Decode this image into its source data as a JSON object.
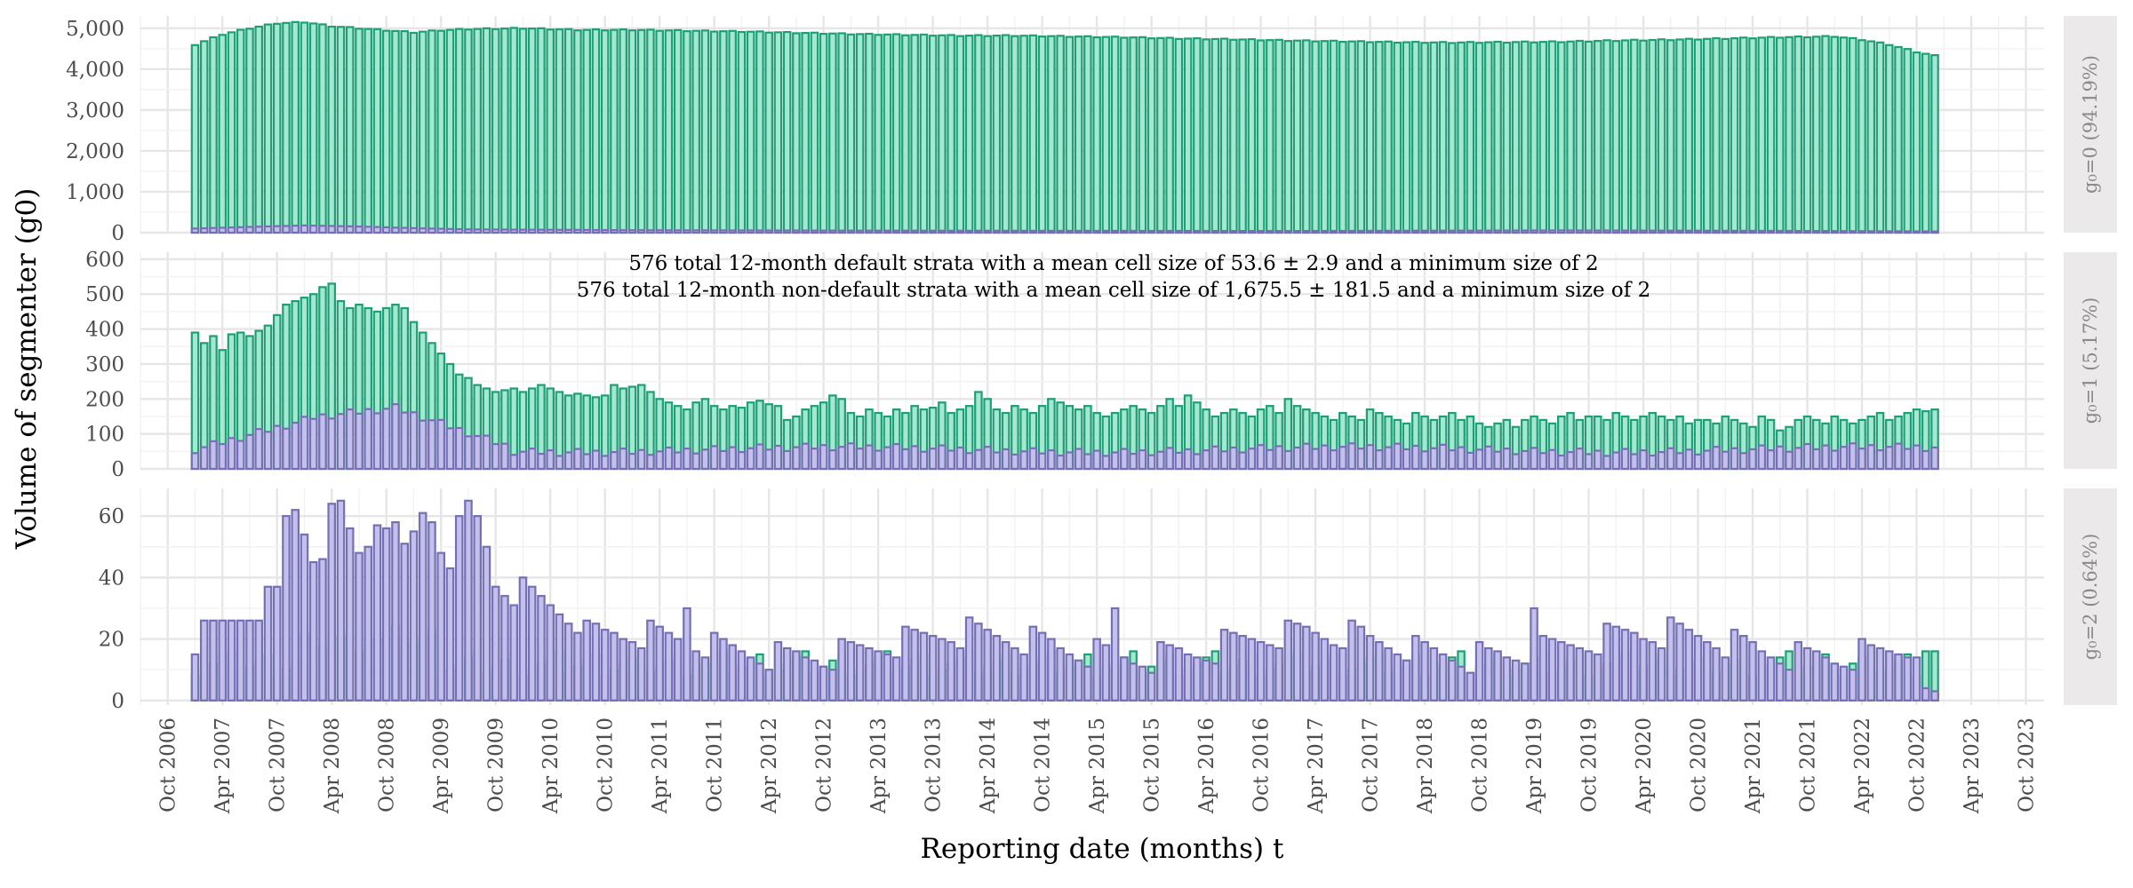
{
  "chart_data": {
    "type": "bar",
    "x_axis_label": "Reporting date (months) t",
    "y_axis_label": "Volume of segmenter (g0)",
    "x_tick_labels": [
      "Oct 2006",
      "Apr 2007",
      "Oct 2007",
      "Apr 2008",
      "Oct 2008",
      "Apr 2009",
      "Oct 2009",
      "Apr 2010",
      "Oct 2010",
      "Apr 2011",
      "Oct 2011",
      "Apr 2012",
      "Oct 2012",
      "Apr 2013",
      "Oct 2013",
      "Apr 2014",
      "Oct 2014",
      "Apr 2015",
      "Oct 2015",
      "Apr 2016",
      "Oct 2016",
      "Apr 2017",
      "Oct 2017",
      "Apr 2018",
      "Oct 2018",
      "Apr 2019",
      "Oct 2019",
      "Apr 2020",
      "Oct 2020",
      "Apr 2021",
      "Oct 2021",
      "Apr 2022",
      "Oct 2022",
      "Apr 2023",
      "Oct 2023"
    ],
    "x_range": [
      "2006-07",
      "2023-12"
    ],
    "first_month": "2007-01",
    "last_month": "2022-12",
    "series_colors": {
      "non_default": "#1f9e77",
      "default": "#7570b3"
    },
    "series_fill_colors": {
      "non_default": "#a3e8cf",
      "default": "#c3c0ec"
    },
    "annotations": [
      "576 total 12-month default strata with a mean cell size of 53.6 ± 2.9 and a minimum size of 2",
      "576 total 12-month non-default strata with a mean cell size of 1,675.5 ± 181.5 and a minimum size of 2"
    ],
    "grid": true,
    "panels": [
      {
        "strip_label": "g₀=0 (94.19%)",
        "ylim": [
          0,
          5300
        ],
        "y_ticks": [
          0,
          1000,
          2000,
          3000,
          4000,
          5000
        ],
        "y_tick_labels": [
          "0",
          "1,000",
          "2,000",
          "3,000",
          "4,000",
          "5,000"
        ],
        "non_default_anchors": [
          [
            0,
            4600
          ],
          [
            3,
            4850
          ],
          [
            6,
            5000
          ],
          [
            9,
            5120
          ],
          [
            12,
            5150
          ],
          [
            15,
            5050
          ],
          [
            18,
            5000
          ],
          [
            21,
            4950
          ],
          [
            24,
            4900
          ],
          [
            27,
            4950
          ],
          [
            30,
            4980
          ],
          [
            36,
            5000
          ],
          [
            42,
            4960
          ],
          [
            48,
            4960
          ],
          [
            54,
            4940
          ],
          [
            60,
            4920
          ],
          [
            66,
            4890
          ],
          [
            72,
            4860
          ],
          [
            78,
            4840
          ],
          [
            84,
            4820
          ],
          [
            90,
            4820
          ],
          [
            96,
            4800
          ],
          [
            102,
            4780
          ],
          [
            108,
            4750
          ],
          [
            114,
            4730
          ],
          [
            120,
            4700
          ],
          [
            126,
            4680
          ],
          [
            132,
            4660
          ],
          [
            138,
            4650
          ],
          [
            144,
            4660
          ],
          [
            150,
            4670
          ],
          [
            156,
            4700
          ],
          [
            162,
            4720
          ],
          [
            168,
            4750
          ],
          [
            174,
            4780
          ],
          [
            180,
            4800
          ],
          [
            183,
            4720
          ],
          [
            186,
            4600
          ],
          [
            189,
            4420
          ],
          [
            191,
            4330
          ]
        ],
        "default_anchors": [
          [
            0,
            100
          ],
          [
            6,
            140
          ],
          [
            12,
            175
          ],
          [
            18,
            150
          ],
          [
            24,
            110
          ],
          [
            30,
            80
          ],
          [
            48,
            60
          ],
          [
            72,
            50
          ],
          [
            96,
            45
          ],
          [
            120,
            40
          ],
          [
            150,
            55
          ],
          [
            180,
            40
          ],
          [
            191,
            30
          ]
        ]
      },
      {
        "strip_label": "g₀=1 (5.17%)",
        "ylim": [
          0,
          620
        ],
        "y_ticks": [
          0,
          100,
          200,
          300,
          400,
          500,
          600
        ],
        "y_tick_labels": [
          "0",
          "100",
          "200",
          "300",
          "400",
          "500",
          "600"
        ],
        "non_default_values": [
          390,
          360,
          380,
          340,
          385,
          390,
          380,
          395,
          410,
          440,
          470,
          480,
          490,
          500,
          520,
          530,
          480,
          460,
          470,
          460,
          450,
          460,
          470,
          460,
          420,
          390,
          360,
          330,
          300,
          270,
          260,
          240,
          230,
          220,
          225,
          230,
          220,
          230,
          240,
          230,
          220,
          210,
          215,
          210,
          205,
          210,
          240,
          230,
          235,
          240,
          220,
          200,
          190,
          180,
          170,
          190,
          200,
          180,
          170,
          180,
          175,
          190,
          195,
          185,
          180,
          140,
          150,
          170,
          180,
          190,
          210,
          200,
          160,
          150,
          170,
          160,
          150,
          170,
          160,
          180,
          170,
          175,
          190,
          160,
          170,
          180,
          220,
          200,
          170,
          160,
          180,
          170,
          160,
          180,
          200,
          190,
          180,
          170,
          180,
          160,
          150,
          160,
          170,
          180,
          170,
          160,
          180,
          200,
          180,
          210,
          190,
          170,
          150,
          160,
          170,
          160,
          150,
          170,
          180,
          160,
          200,
          180,
          170,
          160,
          150,
          140,
          160,
          150,
          140,
          170,
          160,
          150,
          140,
          130,
          160,
          150,
          140,
          150,
          160,
          140,
          150,
          130,
          120,
          130,
          140,
          120,
          140,
          150,
          140,
          130,
          150,
          160,
          140,
          150,
          150,
          140,
          160,
          150,
          140,
          150,
          160,
          150,
          140,
          150,
          130,
          140,
          140,
          130,
          150,
          140,
          130,
          120,
          150,
          140,
          110,
          120,
          140,
          150,
          140,
          130,
          150,
          140,
          130,
          140,
          150,
          160,
          140,
          150,
          160,
          170,
          165,
          170
        ]
      },
      {
        "strip_label": "g₀=2 (0.64%)",
        "ylim": [
          -1.5,
          69
        ],
        "y_ticks": [
          0,
          20,
          40,
          60
        ],
        "y_tick_labels": [
          "0",
          "20",
          "40",
          "60"
        ]
      }
    ]
  }
}
